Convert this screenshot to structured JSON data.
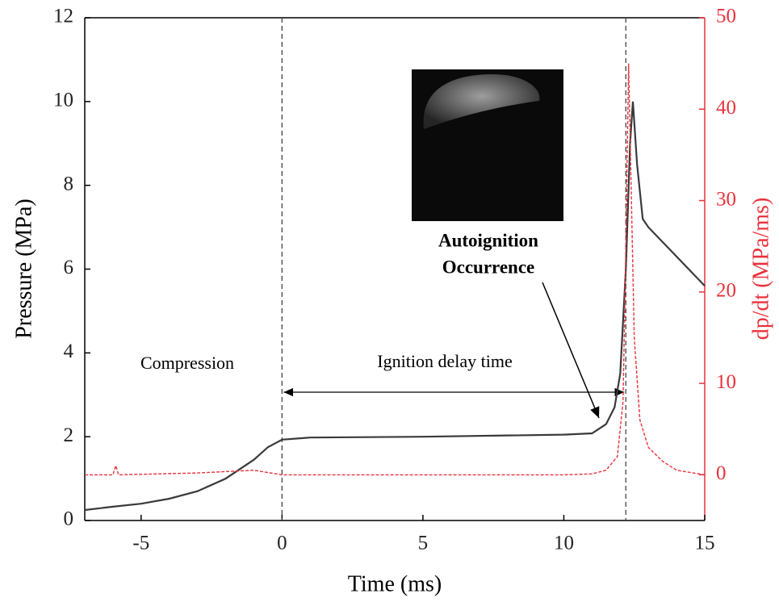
{
  "chart_data": {
    "type": "line",
    "xlabel": "Time (ms)",
    "ylabel": "Pressure (MPa)",
    "y2label": "dp/dt (MPa/ms)",
    "xlim": [
      -7,
      15
    ],
    "xticks": [
      -5,
      0,
      5,
      10,
      15
    ],
    "ylim": [
      0,
      12
    ],
    "yticks": [
      0,
      2,
      4,
      6,
      8,
      10,
      12
    ],
    "y2lim": [
      -5,
      50
    ],
    "y2ticks": [
      0,
      10,
      20,
      30,
      40,
      50
    ],
    "y2color": "#e8323c",
    "vlines": [
      0,
      12.2
    ],
    "annotations": [
      "Compression",
      "Ignition delay time",
      "Autoignition",
      "Occurrence"
    ],
    "series": [
      {
        "color": "#3a3a3a",
        "axis": "y",
        "x": [
          -7,
          -6,
          -5,
          -4,
          -3,
          -2,
          -1,
          -0.5,
          0,
          1,
          5,
          10,
          11,
          11.5,
          11.8,
          12.0,
          12.2,
          12.35,
          12.45,
          12.6,
          12.8,
          13,
          14,
          15
        ],
        "values": [
          0.25,
          0.33,
          0.4,
          0.52,
          0.7,
          1.0,
          1.45,
          1.75,
          1.93,
          1.98,
          2.0,
          2.05,
          2.08,
          2.3,
          2.7,
          3.5,
          6,
          9,
          10,
          8.5,
          7.2,
          7,
          6.3,
          5.6
        ]
      },
      {
        "color": "#e8323c",
        "axis": "y2",
        "x": [
          -7,
          -6,
          -5.9,
          -5.8,
          -3,
          -1,
          0,
          5,
          10,
          11,
          11.5,
          11.9,
          12.1,
          12.2,
          12.3,
          12.4,
          12.5,
          12.7,
          13,
          13.5,
          14,
          15
        ],
        "values": [
          0,
          0,
          1,
          0,
          0.2,
          0.5,
          0,
          0,
          0,
          0.1,
          0.5,
          2,
          8,
          25,
          45,
          30,
          15,
          6,
          3,
          1.5,
          0.5,
          0
        ]
      }
    ]
  }
}
